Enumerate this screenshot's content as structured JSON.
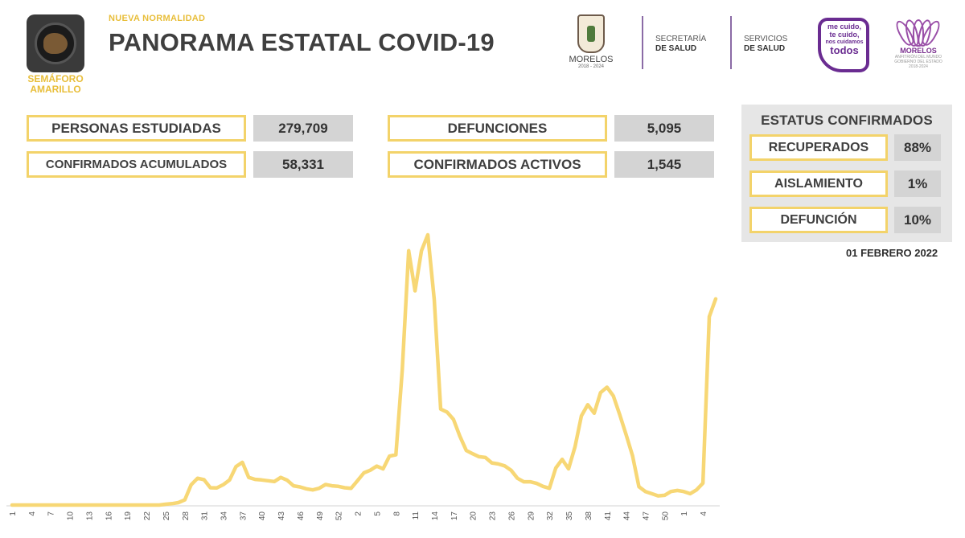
{
  "header": {
    "semaforo_label": "SEMÁFORO AMARILLO",
    "subtitle": "NUEVA NORMALIDAD",
    "title": "PANORAMA ESTATAL COVID-19",
    "logos": {
      "morelos_name": "MORELOS",
      "morelos_years": "2018 - 2024",
      "secretaria_line1": "SECRETARÍA",
      "secretaria_line2": "DE SALUD",
      "servicios_line1": "SERVICIOS",
      "servicios_line2": "DE SALUD",
      "todos_line1": "me cuido,",
      "todos_line2": "te cuido,",
      "todos_line3": "nos cuidamos",
      "todos_line4": "todos",
      "lotus_name": "MORELOS",
      "lotus_line1": "ANFITRIÓN DEL MUNDO",
      "lotus_line2": "GOBIERNO DEL ESTADO",
      "lotus_line3": "2018-2024"
    }
  },
  "stats": {
    "personas_estudiadas": {
      "label": "PERSONAS ESTUDIADAS",
      "value": "279,709"
    },
    "confirmados_acumulados": {
      "label": "CONFIRMADOS ACUMULADOS",
      "value": "58,331"
    },
    "defunciones": {
      "label": "DEFUNCIONES",
      "value": "5,095"
    },
    "confirmados_activos": {
      "label": "CONFIRMADOS ACTIVOS",
      "value": "1,545"
    }
  },
  "status": {
    "title": "ESTATUS CONFIRMADOS",
    "items": [
      {
        "label": "RECUPERADOS",
        "value": "88%"
      },
      {
        "label": "AISLAMIENTO",
        "value": "1%"
      },
      {
        "label": "DEFUNCIÓN",
        "value": "10%"
      }
    ]
  },
  "date": "01 FEBRERO 2022",
  "colors": {
    "accent_yellow": "#f3d36a",
    "line": "#f7d775",
    "value_bg": "#d4d4d4",
    "text_dark": "#3f3f3f",
    "purple": "#6a2c91"
  },
  "chart_data": {
    "type": "line",
    "x_tick_labels": [
      "1",
      "4",
      "7",
      "10",
      "13",
      "16",
      "19",
      "22",
      "25",
      "28",
      "31",
      "34",
      "37",
      "40",
      "43",
      "46",
      "49",
      "52",
      "2",
      "5",
      "8",
      "11",
      "14",
      "17",
      "20",
      "23",
      "26",
      "29",
      "32",
      "35",
      "38",
      "41",
      "44",
      "47",
      "50",
      "1",
      "4"
    ],
    "series": [
      {
        "values": [
          0,
          0,
          0,
          0,
          0,
          0,
          0,
          0,
          0,
          0,
          0,
          0,
          0,
          0,
          0,
          0,
          0,
          0,
          0,
          0,
          0,
          0,
          0,
          0,
          0.3,
          0.5,
          0.9,
          1.9,
          7.5,
          9.9,
          9.4,
          6.4,
          6.3,
          7.5,
          9.3,
          14.2,
          15.8,
          10.2,
          9.5,
          9.3,
          9.0,
          8.7,
          10.2,
          9.2,
          7.1,
          6.7,
          6.0,
          5.6,
          6.2,
          7.6,
          7.1,
          6.9,
          6.4,
          6.2,
          9.0,
          11.9,
          12.9,
          14.4,
          13.4,
          18.1,
          18.6,
          49.9,
          94.1,
          79.3,
          94.1,
          100,
          76.0,
          35.5,
          34.4,
          31.7,
          25.5,
          20.2,
          19.0,
          17.9,
          17.6,
          15.6,
          15.2,
          14.5,
          12.9,
          9.9,
          8.6,
          8.6,
          8.0,
          6.9,
          6.2,
          13.7,
          16.9,
          13.4,
          21.5,
          33.0,
          37.1,
          34.0,
          41.6,
          43.6,
          40.4,
          33.4,
          26.0,
          18.2,
          6.8,
          5.0,
          4.2,
          3.4,
          3.6,
          5.0,
          5.4,
          5.0,
          4.2,
          5.6,
          8.1,
          69.7,
          76.3
        ]
      }
    ],
    "ylim": [
      0,
      100
    ]
  }
}
